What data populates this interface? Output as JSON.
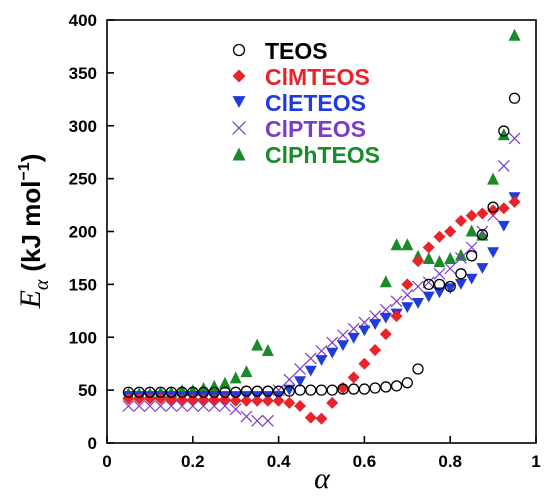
{
  "chart_data": {
    "type": "scatter",
    "xlim": [
      0,
      1
    ],
    "ylim": [
      0,
      400
    ],
    "xticks": [
      "0",
      "0.2",
      "0.4",
      "0.6",
      "0.8",
      "1"
    ],
    "yticks": [
      "0",
      "50",
      "100",
      "150",
      "200",
      "250",
      "300",
      "350",
      "400"
    ],
    "xlabel": "α",
    "ylabel_symbol": "E",
    "ylabel_subscript": "α",
    "ylabel_unit": "(kJ mol",
    "ylabel_unit_sup": "−1",
    "ylabel_unit_close": ")",
    "legend_position": "top-center",
    "series": [
      {
        "name": "TEOS",
        "marker": "open-circle",
        "color": "#000000",
        "x": [
          0.05,
          0.075,
          0.1,
          0.125,
          0.15,
          0.175,
          0.2,
          0.225,
          0.25,
          0.275,
          0.3,
          0.325,
          0.35,
          0.375,
          0.4,
          0.425,
          0.45,
          0.475,
          0.5,
          0.525,
          0.55,
          0.575,
          0.6,
          0.625,
          0.65,
          0.675,
          0.7,
          0.725,
          0.75,
          0.775,
          0.8,
          0.825,
          0.85,
          0.875,
          0.9,
          0.925,
          0.95
        ],
        "y": [
          48,
          48,
          48,
          48,
          48,
          48,
          48,
          48,
          48,
          48,
          48,
          49,
          49,
          49,
          49,
          49,
          50,
          50,
          50,
          50,
          51,
          51,
          51,
          52,
          53,
          54,
          57,
          70,
          150,
          150,
          148,
          160,
          177,
          197,
          223,
          295,
          326
        ]
      },
      {
        "name": "ClMTEOS",
        "marker": "diamond",
        "color": "#e8232a",
        "x": [
          0.05,
          0.075,
          0.1,
          0.125,
          0.15,
          0.175,
          0.2,
          0.225,
          0.25,
          0.275,
          0.3,
          0.325,
          0.35,
          0.375,
          0.4,
          0.425,
          0.45,
          0.475,
          0.5,
          0.525,
          0.55,
          0.575,
          0.6,
          0.625,
          0.65,
          0.675,
          0.7,
          0.725,
          0.75,
          0.775,
          0.8,
          0.825,
          0.85,
          0.875,
          0.9,
          0.925,
          0.95
        ],
        "y": [
          42,
          42,
          42,
          42,
          41,
          41,
          41,
          41,
          41,
          41,
          40,
          40,
          40,
          40,
          40,
          38,
          35,
          24,
          23,
          38,
          52,
          62,
          75,
          88,
          103,
          120,
          150,
          172,
          185,
          195,
          200,
          210,
          215,
          217,
          220,
          222,
          228
        ]
      },
      {
        "name": "ClETEOS",
        "marker": "down-triangle",
        "color": "#1f3bdc",
        "x": [
          0.05,
          0.075,
          0.1,
          0.125,
          0.15,
          0.175,
          0.2,
          0.225,
          0.25,
          0.275,
          0.3,
          0.325,
          0.35,
          0.375,
          0.4,
          0.425,
          0.45,
          0.475,
          0.5,
          0.525,
          0.55,
          0.575,
          0.6,
          0.625,
          0.65,
          0.675,
          0.7,
          0.725,
          0.75,
          0.775,
          0.8,
          0.825,
          0.85,
          0.875,
          0.9,
          0.925,
          0.95
        ],
        "y": [
          44,
          44,
          44,
          44,
          44,
          44,
          44,
          44,
          44,
          44,
          44,
          44,
          44,
          44,
          44,
          50,
          58,
          68,
          78,
          85,
          92,
          99,
          106,
          112,
          118,
          122,
          128,
          132,
          138,
          142,
          146,
          150,
          155,
          165,
          180,
          205,
          232
        ]
      },
      {
        "name": "ClPTEOS",
        "marker": "x",
        "color": "#7b3cc8",
        "x": [
          0.05,
          0.075,
          0.1,
          0.125,
          0.15,
          0.175,
          0.2,
          0.225,
          0.25,
          0.275,
          0.3,
          0.325,
          0.35,
          0.375,
          0.4,
          0.425,
          0.45,
          0.475,
          0.5,
          0.525,
          0.55,
          0.575,
          0.6,
          0.625,
          0.65,
          0.675,
          0.7,
          0.725,
          0.75,
          0.775,
          0.8,
          0.825,
          0.85,
          0.875,
          0.9,
          0.925,
          0.95
        ],
        "y": [
          35,
          35,
          35,
          35,
          35,
          35,
          35,
          35,
          35,
          35,
          32,
          25,
          21,
          21,
          50,
          60,
          70,
          80,
          87,
          95,
          102,
          108,
          114,
          120,
          126,
          134,
          140,
          148,
          152,
          160,
          165,
          175,
          185,
          200,
          215,
          262,
          288
        ]
      },
      {
        "name": "ClPhTEOS",
        "marker": "up-triangle",
        "color": "#1a8a2a",
        "x": [
          0.05,
          0.075,
          0.1,
          0.125,
          0.15,
          0.175,
          0.2,
          0.225,
          0.25,
          0.275,
          0.3,
          0.325,
          0.35,
          0.375,
          0.65,
          0.675,
          0.7,
          0.725,
          0.75,
          0.775,
          0.8,
          0.825,
          0.85,
          0.875,
          0.9,
          0.925,
          0.95
        ],
        "y": [
          47,
          47,
          47,
          48,
          48,
          50,
          50,
          52,
          54,
          57,
          62,
          68,
          93,
          88,
          153,
          188,
          188,
          177,
          175,
          172,
          175,
          178,
          201,
          197,
          250,
          292,
          386
        ]
      }
    ]
  }
}
